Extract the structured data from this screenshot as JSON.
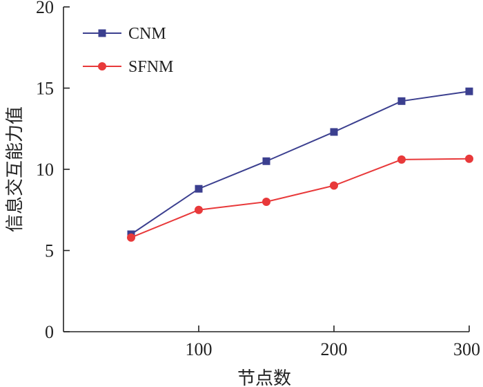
{
  "chart_data": {
    "type": "line",
    "title": "",
    "xlabel": "节点数",
    "ylabel": "信息交互能力值",
    "x": [
      50,
      100,
      150,
      200,
      250,
      300
    ],
    "xlim": [
      0,
      300
    ],
    "ylim": [
      0,
      20
    ],
    "x_ticks": [
      100,
      200,
      300
    ],
    "y_ticks": [
      0,
      5,
      10,
      15,
      20
    ],
    "x_tick_labels": [
      "100",
      "200",
      "300"
    ],
    "y_tick_labels": [
      "0",
      "5",
      "10",
      "15",
      "20"
    ],
    "legend_position": "top-left",
    "grid": false,
    "series": [
      {
        "name": "CNM",
        "color": "#3b3f8f",
        "marker": "square",
        "values": [
          6.0,
          8.8,
          10.5,
          12.3,
          14.2,
          14.8
        ]
      },
      {
        "name": "SFNM",
        "color": "#e8393a",
        "marker": "circle",
        "values": [
          5.8,
          7.5,
          8.0,
          9.0,
          10.6,
          10.65
        ]
      }
    ]
  }
}
